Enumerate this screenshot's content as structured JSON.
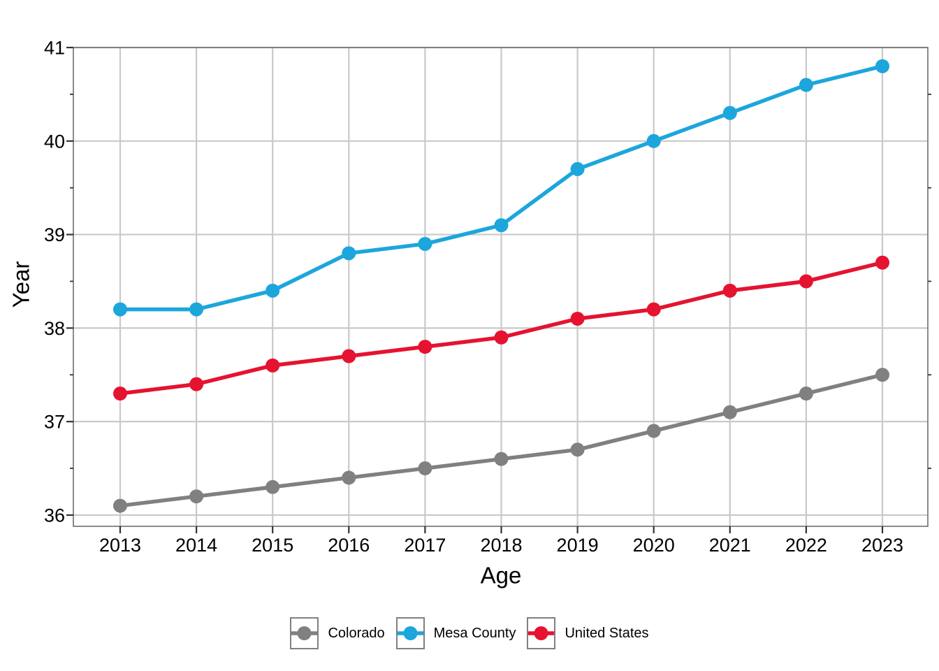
{
  "chart_data": {
    "type": "line",
    "title": "",
    "xlabel": "Age",
    "ylabel": "Year",
    "categories": [
      2013,
      2014,
      2015,
      2016,
      2017,
      2018,
      2019,
      2020,
      2021,
      2022,
      2023
    ],
    "series": [
      {
        "name": "Colorado",
        "color": "#808080",
        "values": [
          36.1,
          36.2,
          36.3,
          36.4,
          36.5,
          36.6,
          36.7,
          36.9,
          37.1,
          37.3,
          37.5
        ]
      },
      {
        "name": "Mesa County",
        "color": "#1CA6DC",
        "values": [
          38.2,
          38.2,
          38.4,
          38.8,
          38.9,
          39.1,
          39.7,
          40.0,
          40.3,
          40.6,
          40.8
        ]
      },
      {
        "name": "United States",
        "color": "#E5132F",
        "values": [
          37.3,
          37.4,
          37.6,
          37.7,
          37.8,
          37.9,
          38.1,
          38.2,
          38.4,
          38.5,
          38.7
        ]
      }
    ],
    "ylim": [
      35.88,
      41.0
    ],
    "yticks_major": [
      36,
      37,
      38,
      39,
      40,
      41
    ],
    "yticks_minor": [
      36.5,
      37.5,
      38.5,
      39.5,
      40.5
    ],
    "grid": "major-only",
    "legend_position": "bottom",
    "marker": "filled-circle",
    "colors": {
      "background": "#FFFFFF",
      "gridline": "#C9C9C9",
      "panel_border": "#6E6E6E",
      "tick": "#333333",
      "text": "#000000",
      "legend_box_border": "#808080"
    }
  }
}
